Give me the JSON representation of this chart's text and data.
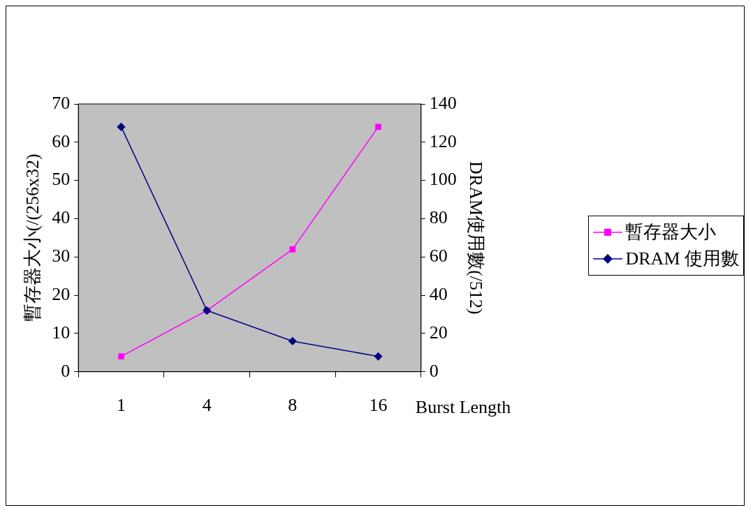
{
  "chart_data": {
    "type": "line",
    "categories": [
      "1",
      "4",
      "8",
      "16"
    ],
    "xlabel": "Burst Length",
    "ylabel": "暫存器大小(/(256x32)",
    "y2label": "DRAM使用數(/512)",
    "series": [
      {
        "name": "暫存器大小",
        "color": "#ff00ff",
        "values": [
          4,
          16,
          32,
          64
        ],
        "marker": "square"
      },
      {
        "name": "DRAM 使用數",
        "color": "#000080",
        "values": [
          128,
          32,
          16,
          8
        ],
        "axis": "y2",
        "marker": "diamond"
      }
    ],
    "ylim": [
      0,
      70
    ],
    "yticks": [
      0,
      10,
      20,
      30,
      40,
      50,
      60,
      70
    ],
    "y2lim": [
      0,
      140
    ],
    "y2ticks": [
      0,
      20,
      40,
      60,
      80,
      100,
      120,
      140
    ],
    "grid": false,
    "legend": "right",
    "line_style": "solid"
  }
}
